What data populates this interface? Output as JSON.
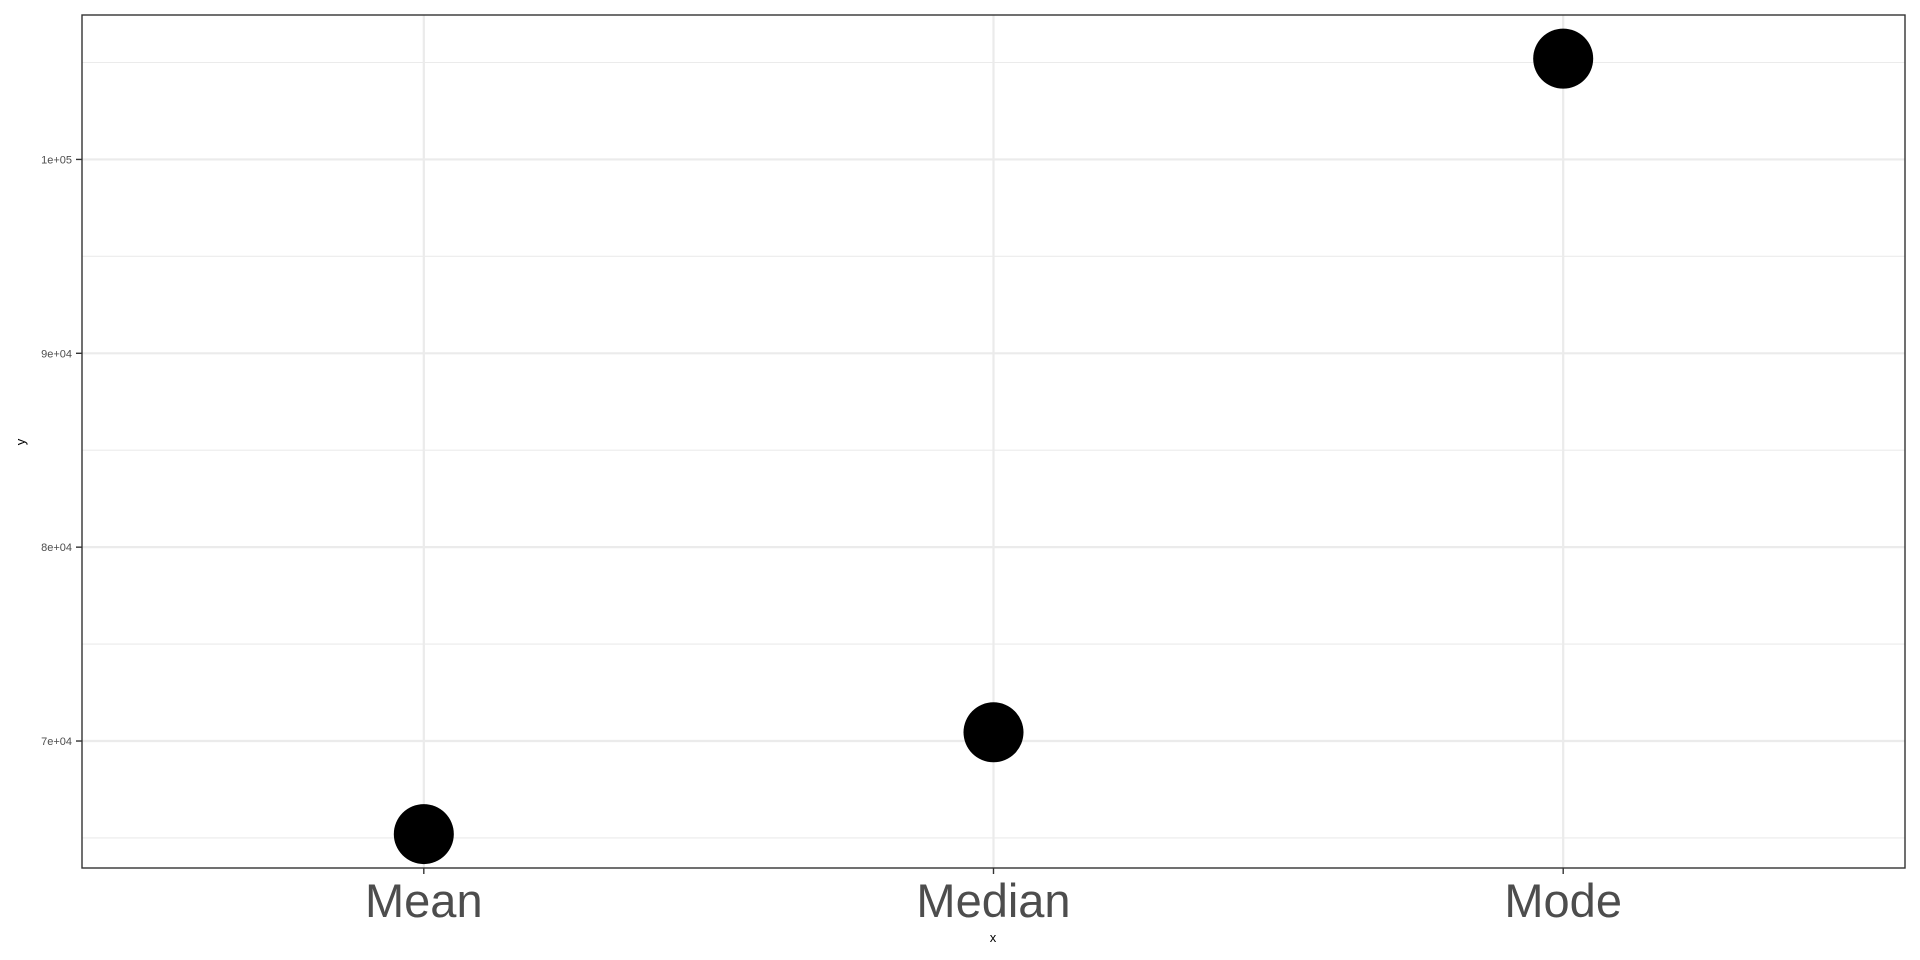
{
  "chart_data": {
    "type": "scatter",
    "title": "",
    "xlabel": "x",
    "ylabel": "y",
    "categories": [
      "Mean",
      "Median",
      "Mode"
    ],
    "values": [
      65200,
      70450,
      105200
    ],
    "ylim": [
      63450,
      107450
    ],
    "y_major_ticks": [
      70000,
      80000,
      90000,
      100000
    ],
    "y_minor_ticks": [
      65000,
      75000,
      85000,
      95000,
      105000
    ],
    "y_tick_labels": [
      "7e+04",
      "8e+04",
      "9e+04",
      "1e+05"
    ],
    "grid": true,
    "legend": "none",
    "point_color": "#000000"
  }
}
